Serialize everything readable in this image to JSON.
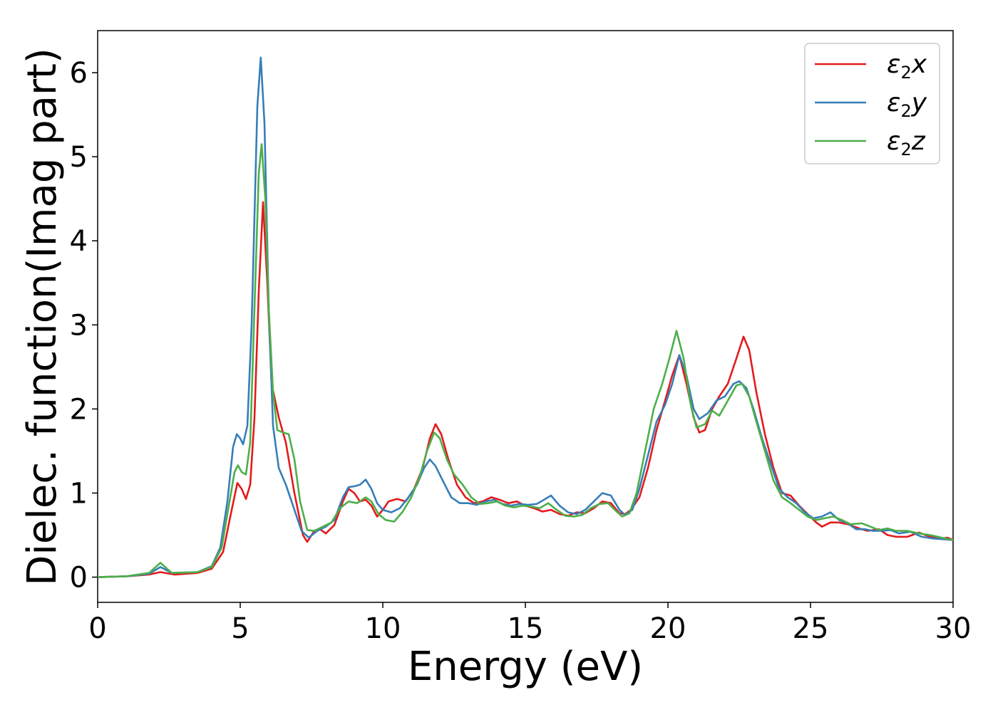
{
  "chart_data": {
    "type": "line",
    "title": "",
    "xlabel": "Energy (eV)",
    "ylabel": "Dielec. function(Imag part)",
    "xlim": [
      0,
      30
    ],
    "ylim": [
      -0.3,
      6.5
    ],
    "xticks": [
      0,
      5,
      10,
      15,
      20,
      25,
      30
    ],
    "xtick_labels": [
      "0",
      "5",
      "10",
      "15",
      "20",
      "25",
      "30"
    ],
    "yticks": [
      0,
      1,
      2,
      3,
      4,
      5,
      6
    ],
    "ytick_labels": [
      "0",
      "1",
      "2",
      "3",
      "4",
      "5",
      "6"
    ],
    "grid": false,
    "legend_position": "top-right",
    "series": [
      {
        "name": "x",
        "legend_symbol": "ε",
        "legend_subscript": "2",
        "legend_suffix": "x",
        "color": "#e41a1c",
        "points": [
          [
            0,
            0
          ],
          [
            1,
            0.01
          ],
          [
            1.8,
            0.03
          ],
          [
            2.2,
            0.06
          ],
          [
            2.7,
            0.03
          ],
          [
            3.5,
            0.05
          ],
          [
            4,
            0.1
          ],
          [
            4.4,
            0.3
          ],
          [
            4.7,
            0.8
          ],
          [
            4.9,
            1.12
          ],
          [
            5.05,
            1.05
          ],
          [
            5.2,
            0.93
          ],
          [
            5.35,
            1.1
          ],
          [
            5.5,
            1.9
          ],
          [
            5.65,
            3.4
          ],
          [
            5.8,
            4.46
          ],
          [
            5.95,
            3.5
          ],
          [
            6.1,
            2.3
          ],
          [
            6.35,
            1.9
          ],
          [
            6.6,
            1.6
          ],
          [
            6.9,
            1.0
          ],
          [
            7.2,
            0.5
          ],
          [
            7.35,
            0.42
          ],
          [
            7.6,
            0.55
          ],
          [
            7.8,
            0.57
          ],
          [
            8.0,
            0.52
          ],
          [
            8.3,
            0.62
          ],
          [
            8.6,
            0.9
          ],
          [
            8.8,
            1.05
          ],
          [
            9.0,
            1.0
          ],
          [
            9.2,
            0.9
          ],
          [
            9.4,
            0.92
          ],
          [
            9.6,
            0.85
          ],
          [
            9.8,
            0.72
          ],
          [
            10.0,
            0.8
          ],
          [
            10.2,
            0.9
          ],
          [
            10.5,
            0.93
          ],
          [
            10.8,
            0.9
          ],
          [
            11.1,
            1.05
          ],
          [
            11.4,
            1.3
          ],
          [
            11.65,
            1.65
          ],
          [
            11.85,
            1.82
          ],
          [
            12.05,
            1.7
          ],
          [
            12.3,
            1.4
          ],
          [
            12.6,
            1.1
          ],
          [
            12.9,
            0.95
          ],
          [
            13.2,
            0.88
          ],
          [
            13.5,
            0.9
          ],
          [
            13.8,
            0.95
          ],
          [
            14.1,
            0.92
          ],
          [
            14.4,
            0.88
          ],
          [
            14.7,
            0.9
          ],
          [
            15.0,
            0.85
          ],
          [
            15.3,
            0.82
          ],
          [
            15.6,
            0.78
          ],
          [
            15.9,
            0.8
          ],
          [
            16.2,
            0.75
          ],
          [
            16.5,
            0.73
          ],
          [
            16.8,
            0.77
          ],
          [
            17.1,
            0.76
          ],
          [
            17.4,
            0.82
          ],
          [
            17.7,
            0.9
          ],
          [
            18.0,
            0.88
          ],
          [
            18.3,
            0.76
          ],
          [
            18.5,
            0.75
          ],
          [
            18.7,
            0.8
          ],
          [
            19.0,
            0.95
          ],
          [
            19.3,
            1.3
          ],
          [
            19.6,
            1.75
          ],
          [
            19.9,
            2.1
          ],
          [
            20.15,
            2.4
          ],
          [
            20.4,
            2.64
          ],
          [
            20.65,
            2.3
          ],
          [
            20.9,
            1.9
          ],
          [
            21.1,
            1.72
          ],
          [
            21.3,
            1.75
          ],
          [
            21.55,
            2.0
          ],
          [
            21.8,
            2.15
          ],
          [
            22.1,
            2.3
          ],
          [
            22.4,
            2.6
          ],
          [
            22.65,
            2.86
          ],
          [
            22.85,
            2.7
          ],
          [
            23.1,
            2.2
          ],
          [
            23.4,
            1.7
          ],
          [
            23.7,
            1.3
          ],
          [
            24.0,
            1.0
          ],
          [
            24.3,
            0.97
          ],
          [
            24.6,
            0.85
          ],
          [
            24.9,
            0.75
          ],
          [
            25.2,
            0.65
          ],
          [
            25.4,
            0.6
          ],
          [
            25.7,
            0.65
          ],
          [
            26.0,
            0.65
          ],
          [
            26.3,
            0.63
          ],
          [
            26.7,
            0.58
          ],
          [
            27.0,
            0.55
          ],
          [
            27.4,
            0.57
          ],
          [
            27.7,
            0.5
          ],
          [
            28.0,
            0.48
          ],
          [
            28.4,
            0.48
          ],
          [
            28.8,
            0.53
          ],
          [
            29.2,
            0.48
          ],
          [
            29.6,
            0.46
          ],
          [
            29.8,
            0.47
          ],
          [
            30,
            0.44
          ]
        ]
      },
      {
        "name": "y",
        "legend_symbol": "ε",
        "legend_subscript": "2",
        "legend_suffix": "y",
        "color": "#377eb8",
        "points": [
          [
            0,
            0
          ],
          [
            1,
            0.01
          ],
          [
            1.8,
            0.04
          ],
          [
            2.2,
            0.12
          ],
          [
            2.6,
            0.05
          ],
          [
            3.5,
            0.06
          ],
          [
            4,
            0.13
          ],
          [
            4.3,
            0.35
          ],
          [
            4.55,
            0.9
          ],
          [
            4.75,
            1.55
          ],
          [
            4.88,
            1.7
          ],
          [
            5.0,
            1.65
          ],
          [
            5.1,
            1.58
          ],
          [
            5.25,
            1.8
          ],
          [
            5.4,
            3.0
          ],
          [
            5.6,
            5.6
          ],
          [
            5.72,
            6.18
          ],
          [
            5.85,
            5.4
          ],
          [
            6.0,
            3.2
          ],
          [
            6.15,
            1.8
          ],
          [
            6.35,
            1.3
          ],
          [
            6.6,
            1.1
          ],
          [
            6.9,
            0.8
          ],
          [
            7.15,
            0.55
          ],
          [
            7.4,
            0.47
          ],
          [
            7.7,
            0.55
          ],
          [
            8.0,
            0.6
          ],
          [
            8.3,
            0.68
          ],
          [
            8.6,
            0.95
          ],
          [
            8.8,
            1.07
          ],
          [
            9.0,
            1.08
          ],
          [
            9.2,
            1.1
          ],
          [
            9.4,
            1.16
          ],
          [
            9.6,
            1.05
          ],
          [
            9.8,
            0.88
          ],
          [
            10.0,
            0.8
          ],
          [
            10.3,
            0.77
          ],
          [
            10.6,
            0.82
          ],
          [
            10.9,
            0.95
          ],
          [
            11.2,
            1.1
          ],
          [
            11.45,
            1.3
          ],
          [
            11.65,
            1.4
          ],
          [
            11.85,
            1.32
          ],
          [
            12.1,
            1.15
          ],
          [
            12.4,
            0.95
          ],
          [
            12.7,
            0.88
          ],
          [
            13.0,
            0.88
          ],
          [
            13.3,
            0.86
          ],
          [
            13.6,
            0.9
          ],
          [
            13.9,
            0.92
          ],
          [
            14.2,
            0.87
          ],
          [
            14.5,
            0.85
          ],
          [
            14.8,
            0.87
          ],
          [
            15.1,
            0.86
          ],
          [
            15.4,
            0.87
          ],
          [
            15.7,
            0.93
          ],
          [
            15.9,
            0.97
          ],
          [
            16.2,
            0.85
          ],
          [
            16.5,
            0.77
          ],
          [
            16.8,
            0.75
          ],
          [
            17.1,
            0.8
          ],
          [
            17.4,
            0.9
          ],
          [
            17.7,
            1.0
          ],
          [
            18.0,
            0.97
          ],
          [
            18.3,
            0.8
          ],
          [
            18.5,
            0.74
          ],
          [
            18.75,
            0.8
          ],
          [
            19.0,
            1.05
          ],
          [
            19.3,
            1.45
          ],
          [
            19.6,
            1.85
          ],
          [
            19.9,
            2.05
          ],
          [
            20.15,
            2.3
          ],
          [
            20.4,
            2.64
          ],
          [
            20.65,
            2.4
          ],
          [
            20.9,
            2.0
          ],
          [
            21.1,
            1.88
          ],
          [
            21.4,
            1.95
          ],
          [
            21.7,
            2.1
          ],
          [
            22.0,
            2.15
          ],
          [
            22.3,
            2.3
          ],
          [
            22.5,
            2.33
          ],
          [
            22.75,
            2.25
          ],
          [
            23.0,
            2.0
          ],
          [
            23.3,
            1.65
          ],
          [
            23.6,
            1.35
          ],
          [
            23.9,
            1.05
          ],
          [
            24.2,
            0.95
          ],
          [
            24.5,
            0.88
          ],
          [
            24.8,
            0.77
          ],
          [
            25.1,
            0.7
          ],
          [
            25.4,
            0.72
          ],
          [
            25.7,
            0.77
          ],
          [
            26.0,
            0.68
          ],
          [
            26.3,
            0.64
          ],
          [
            26.6,
            0.57
          ],
          [
            26.9,
            0.57
          ],
          [
            27.2,
            0.55
          ],
          [
            27.5,
            0.55
          ],
          [
            27.8,
            0.56
          ],
          [
            28.1,
            0.52
          ],
          [
            28.5,
            0.54
          ],
          [
            28.9,
            0.48
          ],
          [
            29.3,
            0.46
          ],
          [
            29.7,
            0.45
          ],
          [
            30,
            0.44
          ]
        ]
      },
      {
        "name": "z",
        "legend_symbol": "ε",
        "legend_subscript": "2",
        "legend_suffix": "z",
        "color": "#4daf4a",
        "points": [
          [
            0,
            0
          ],
          [
            1,
            0.01
          ],
          [
            1.8,
            0.05
          ],
          [
            2.2,
            0.17
          ],
          [
            2.6,
            0.05
          ],
          [
            3.5,
            0.06
          ],
          [
            4,
            0.12
          ],
          [
            4.35,
            0.35
          ],
          [
            4.6,
            0.85
          ],
          [
            4.8,
            1.25
          ],
          [
            4.92,
            1.33
          ],
          [
            5.05,
            1.25
          ],
          [
            5.2,
            1.22
          ],
          [
            5.35,
            1.6
          ],
          [
            5.5,
            3.2
          ],
          [
            5.65,
            4.8
          ],
          [
            5.75,
            5.15
          ],
          [
            5.88,
            4.5
          ],
          [
            6.0,
            3.2
          ],
          [
            6.15,
            2.2
          ],
          [
            6.3,
            1.75
          ],
          [
            6.5,
            1.72
          ],
          [
            6.7,
            1.7
          ],
          [
            6.9,
            1.4
          ],
          [
            7.1,
            0.9
          ],
          [
            7.35,
            0.56
          ],
          [
            7.6,
            0.55
          ],
          [
            7.9,
            0.6
          ],
          [
            8.2,
            0.65
          ],
          [
            8.5,
            0.82
          ],
          [
            8.8,
            0.9
          ],
          [
            9.1,
            0.88
          ],
          [
            9.4,
            0.95
          ],
          [
            9.6,
            0.9
          ],
          [
            9.85,
            0.75
          ],
          [
            10.1,
            0.68
          ],
          [
            10.4,
            0.66
          ],
          [
            10.7,
            0.78
          ],
          [
            11.0,
            0.95
          ],
          [
            11.3,
            1.2
          ],
          [
            11.55,
            1.5
          ],
          [
            11.8,
            1.72
          ],
          [
            12.0,
            1.65
          ],
          [
            12.25,
            1.4
          ],
          [
            12.5,
            1.22
          ],
          [
            12.8,
            1.1
          ],
          [
            13.1,
            0.95
          ],
          [
            13.4,
            0.87
          ],
          [
            13.7,
            0.88
          ],
          [
            14.0,
            0.9
          ],
          [
            14.3,
            0.85
          ],
          [
            14.6,
            0.83
          ],
          [
            14.9,
            0.85
          ],
          [
            15.2,
            0.84
          ],
          [
            15.5,
            0.82
          ],
          [
            15.8,
            0.88
          ],
          [
            16.1,
            0.8
          ],
          [
            16.4,
            0.73
          ],
          [
            16.7,
            0.72
          ],
          [
            17.0,
            0.74
          ],
          [
            17.3,
            0.82
          ],
          [
            17.6,
            0.87
          ],
          [
            17.9,
            0.88
          ],
          [
            18.2,
            0.78
          ],
          [
            18.4,
            0.72
          ],
          [
            18.65,
            0.76
          ],
          [
            18.9,
            1.0
          ],
          [
            19.2,
            1.5
          ],
          [
            19.5,
            2.0
          ],
          [
            19.8,
            2.3
          ],
          [
            20.05,
            2.6
          ],
          [
            20.3,
            2.93
          ],
          [
            20.55,
            2.6
          ],
          [
            20.8,
            2.05
          ],
          [
            21.0,
            1.78
          ],
          [
            21.3,
            1.82
          ],
          [
            21.55,
            1.98
          ],
          [
            21.8,
            1.92
          ],
          [
            22.1,
            2.1
          ],
          [
            22.4,
            2.28
          ],
          [
            22.6,
            2.3
          ],
          [
            22.85,
            2.15
          ],
          [
            23.1,
            1.85
          ],
          [
            23.4,
            1.5
          ],
          [
            23.7,
            1.15
          ],
          [
            24.0,
            0.95
          ],
          [
            24.3,
            0.88
          ],
          [
            24.6,
            0.8
          ],
          [
            24.9,
            0.72
          ],
          [
            25.2,
            0.68
          ],
          [
            25.5,
            0.7
          ],
          [
            25.8,
            0.72
          ],
          [
            26.1,
            0.68
          ],
          [
            26.4,
            0.63
          ],
          [
            26.8,
            0.64
          ],
          [
            27.1,
            0.6
          ],
          [
            27.4,
            0.56
          ],
          [
            27.7,
            0.58
          ],
          [
            28.0,
            0.55
          ],
          [
            28.4,
            0.55
          ],
          [
            28.8,
            0.52
          ],
          [
            29.2,
            0.5
          ],
          [
            29.6,
            0.47
          ],
          [
            30,
            0.44
          ]
        ]
      }
    ]
  }
}
